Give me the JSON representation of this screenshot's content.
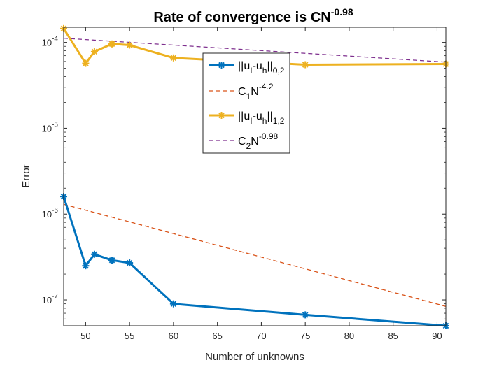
{
  "chart_data": {
    "type": "line",
    "title": "Rate of convergence is CN",
    "title_sup": "-0.98",
    "xlabel": "Number of unknowns",
    "ylabel": "Error",
    "xlim": [
      47.5,
      91
    ],
    "ylim": [
      5e-08,
      0.00015
    ],
    "yscale": "log",
    "x_ticks": [
      50,
      55,
      60,
      65,
      70,
      75,
      80,
      85,
      90
    ],
    "x_tick_labels": [
      "50",
      "55",
      "60",
      "65",
      "70",
      "75",
      "80",
      "85",
      "90"
    ],
    "y_ticks": [
      1e-07,
      1e-06,
      1e-05,
      0.0001
    ],
    "y_tick_labels": [
      {
        "base": "10",
        "exp": "-7"
      },
      {
        "base": "10",
        "exp": "-6"
      },
      {
        "base": "10",
        "exp": "-5"
      },
      {
        "base": "10",
        "exp": "-4"
      }
    ],
    "grid": false,
    "legend_position": "top-center",
    "series": [
      {
        "legend": {
          "pre": "||u",
          "sub1": "I",
          "mid": "-u",
          "sub2": "h",
          "post": "||",
          "sub3": "0,2"
        },
        "style": "solid-markers",
        "color": "#0072BD",
        "x": [
          47.5,
          50,
          51,
          53,
          55,
          60,
          75,
          91
        ],
        "y": [
          1.6e-06,
          2.5e-07,
          3.4e-07,
          2.9e-07,
          2.7e-07,
          9e-08,
          6.7e-08,
          5e-08
        ]
      },
      {
        "legend": {
          "pre": "C",
          "sub1": "1",
          "mid": "N",
          "sup": "-4.2"
        },
        "style": "dashed",
        "color": "#D95319",
        "x": [
          47.5,
          91
        ],
        "y": [
          1.3e-06,
          8.4e-08
        ]
      },
      {
        "legend": {
          "pre": "||u",
          "sub1": "I",
          "mid": "-u",
          "sub2": "h",
          "post": "||",
          "sub3": "1,2"
        },
        "style": "solid-markers",
        "color": "#EDB120",
        "x": [
          47.5,
          50,
          51,
          53,
          55,
          60,
          75,
          91
        ],
        "y": [
          0.000145,
          5.7e-05,
          7.8e-05,
          9.6e-05,
          9.3e-05,
          6.6e-05,
          5.5e-05,
          5.6e-05
        ]
      },
      {
        "legend": {
          "pre": "C",
          "sub1": "2",
          "mid": "N",
          "sup": "-0.98"
        },
        "style": "dashed",
        "color": "#7E2F8E",
        "x": [
          47.5,
          91
        ],
        "y": [
          0.000112,
          5.9e-05
        ]
      }
    ]
  }
}
